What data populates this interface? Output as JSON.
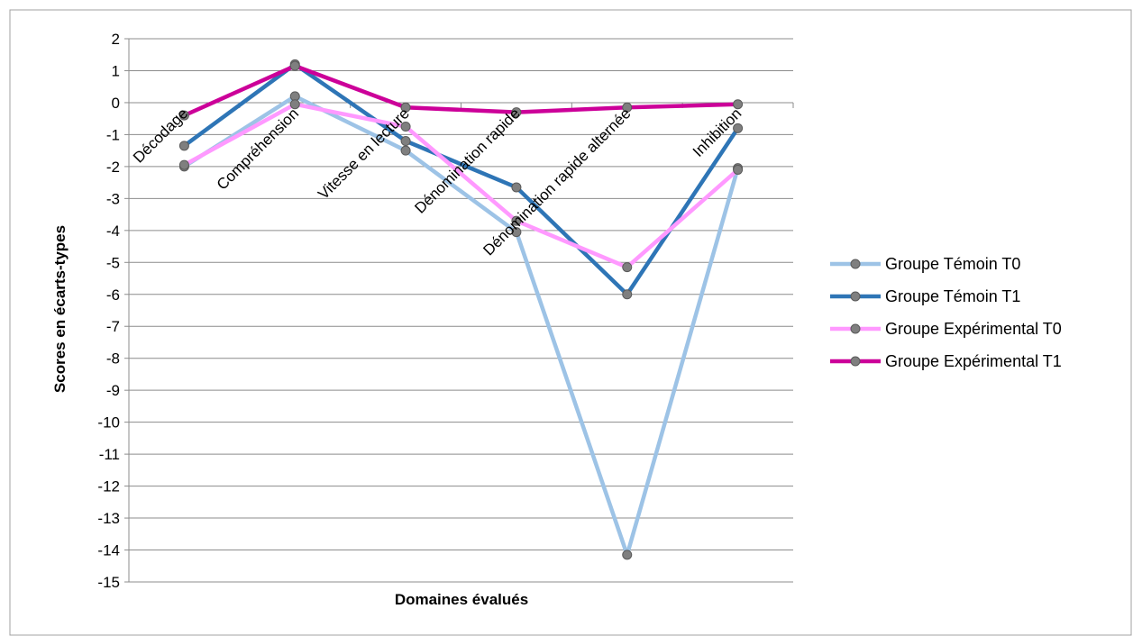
{
  "chart_data": {
    "type": "line",
    "categories": [
      "Décodage",
      "Compréhension",
      "Vitesse en lecture",
      "Dénomination rapide",
      "Dénomination rapide alternée",
      "Inhibition"
    ],
    "series": [
      {
        "name": "Groupe Témoin T0",
        "color": "#9dc3e6",
        "values": [
          -2.0,
          0.2,
          -1.5,
          -4.05,
          -14.15,
          -2.05
        ]
      },
      {
        "name": "Groupe Témoin T1",
        "color": "#2e75b6",
        "values": [
          -1.35,
          1.2,
          -1.2,
          -2.65,
          -6.0,
          -0.8
        ]
      },
      {
        "name": "Groupe Expérimental T0",
        "color": "#ff99ff",
        "values": [
          -1.95,
          -0.05,
          -0.75,
          -3.7,
          -5.15,
          -2.1
        ]
      },
      {
        "name": "Groupe Expérimental T1",
        "color": "#cc0099",
        "values": [
          -0.4,
          1.15,
          -0.15,
          -0.3,
          -0.15,
          -0.05
        ]
      }
    ],
    "xlabel": "Domaines évalués",
    "ylabel": "Scores en écarts-types",
    "ylim": [
      -15,
      2
    ],
    "yticks": [
      2,
      1,
      0,
      -1,
      -2,
      -3,
      -4,
      -5,
      -6,
      -7,
      -8,
      -9,
      -10,
      -11,
      -12,
      -13,
      -14,
      -15
    ],
    "grid": true,
    "legend_position": "right"
  }
}
